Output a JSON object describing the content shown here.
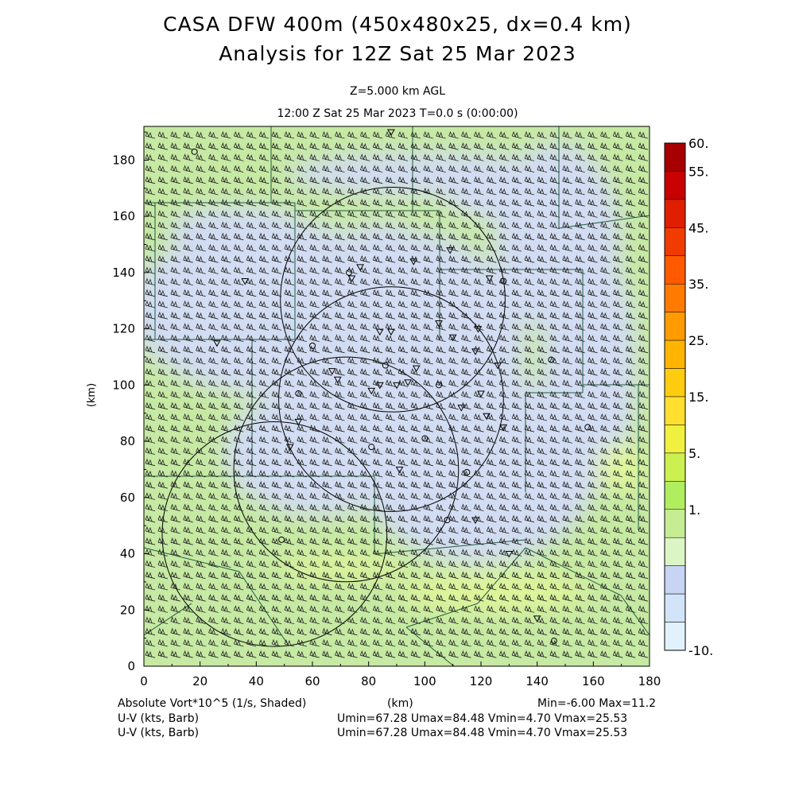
{
  "header": {
    "title": "CASA DFW 400m (450x480x25, dx=0.4 km)",
    "subtitle": "Analysis for 12Z Sat 25 Mar 2023",
    "level": "Z=5.000 km AGL",
    "time": "12:00 Z Sat 25 Mar 2023     T=0.0 s (0:00:00)"
  },
  "footer": {
    "field_label": "Absolute Vort*10^5 (1/s, Shaded)",
    "x_unit": "(km)",
    "minmax": "Min=-6.00 Max=11.2",
    "wind1_label": "U-V (kts, Barb)",
    "wind1_stats": "Umin=67.28 Umax=84.48 Vmin=4.70 Vmax=25.53",
    "wind2_label": "U-V (kts, Barb)",
    "wind2_stats": "Umin=67.28 Umax=84.48 Vmin=4.70 Vmax=25.53"
  },
  "colors": {
    "background": "#c6e9a3",
    "low_vort": "#d2dcf2",
    "high_vort": "#dff59a",
    "lines": "#1f5c3f"
  },
  "chart_data": {
    "type": "heatmap",
    "title": "CASA DFW 400m (450x480x25, dx=0.4 km)",
    "xlabel": "(km)",
    "ylabel": "(km)",
    "xlim": [
      0,
      180
    ],
    "ylim": [
      0,
      192
    ],
    "xticks": [
      "0",
      "20",
      "40",
      "60",
      "80",
      "100",
      "120",
      "140",
      "160",
      "180"
    ],
    "yticks": [
      "0",
      "20",
      "40",
      "60",
      "80",
      "100",
      "120",
      "140",
      "160",
      "180"
    ],
    "colorbar": {
      "labels": [
        "60.",
        "55.",
        "45.",
        "35.",
        "25.",
        "15.",
        "5.",
        "1.",
        "-10."
      ],
      "colors": [
        "#a80000",
        "#c80000",
        "#e01e00",
        "#f03c00",
        "#ff5a00",
        "#ff7a00",
        "#ff9a00",
        "#ffb400",
        "#ffcc10",
        "#ffe030",
        "#f0f040",
        "#ccf050",
        "#b0ee60",
        "#c6ec94",
        "#dcf5c4",
        "#c8d4f4",
        "#d2e4f8",
        "#e2f2fc"
      ]
    },
    "radar_rings": [
      {
        "cx": 88.6,
        "cy": 130.4,
        "r": 40
      },
      {
        "cx": 88.0,
        "cy": 95.0,
        "r": 40
      },
      {
        "cx": 72.0,
        "cy": 70.0,
        "r": 40
      },
      {
        "cx": 46.5,
        "cy": 47.0,
        "r": 40
      }
    ],
    "min": -6.0,
    "max": 11.2
  }
}
